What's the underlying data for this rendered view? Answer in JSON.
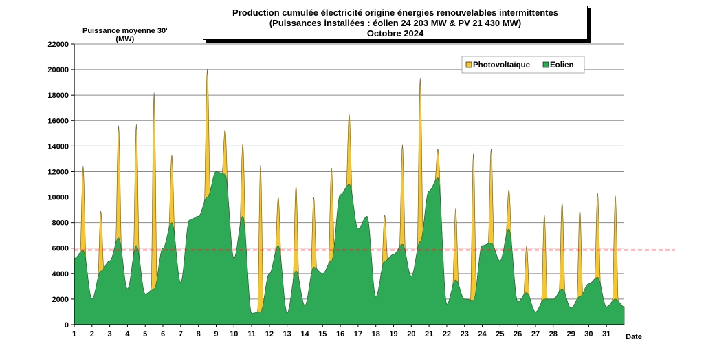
{
  "chart_data": {
    "type": "area",
    "title_lines": [
      "Production cumulée électricité origine énergies renouvelables intermittentes",
      "(Puissances installées : éolien 24 203 MW & PV 21 430 MW)",
      "Octobre 2024"
    ],
    "ylabel_lines": [
      "Puissance moyenne 30'",
      "(MW)"
    ],
    "xlabel": "Date",
    "ylim": [
      0,
      22000
    ],
    "xlim": [
      1,
      32
    ],
    "yticks": [
      0,
      2000,
      4000,
      6000,
      8000,
      10000,
      12000,
      14000,
      16000,
      18000,
      20000,
      22000
    ],
    "xticks": [
      1,
      2,
      3,
      4,
      5,
      6,
      7,
      8,
      9,
      10,
      11,
      12,
      13,
      14,
      15,
      16,
      17,
      18,
      19,
      20,
      21,
      22,
      23,
      24,
      25,
      26,
      27,
      28,
      29,
      30,
      31
    ],
    "grid": true,
    "legend_position": "top-right",
    "reference_line": 5850,
    "colors": {
      "photovoltaique": "#f5c630",
      "eolien": "#2eaa57",
      "reference": "#e8141e"
    },
    "series": [
      {
        "name": "Eolien",
        "days": [
          1,
          2,
          3,
          4,
          5,
          6,
          7,
          8,
          9,
          10,
          11,
          12,
          13,
          14,
          15,
          16,
          17,
          18,
          19,
          20,
          21,
          22,
          23,
          24,
          25,
          26,
          27,
          28,
          29,
          30,
          31
        ],
        "night_values": [
          5200,
          2000,
          5000,
          2800,
          2400,
          6000,
          3300,
          8500,
          12000,
          5200,
          900,
          4000,
          900,
          1500,
          4000,
          10200,
          7500,
          2200,
          5500,
          3800,
          10500,
          1600,
          2000,
          6200,
          5000,
          1800,
          1000,
          2000,
          1300,
          3200,
          1400
        ],
        "noon_values": [
          5800,
          4200,
          6800,
          6200,
          2800,
          8000,
          8200,
          10000,
          11800,
          8500,
          1000,
          6200,
          4200,
          4500,
          5000,
          11000,
          8500,
          5000,
          6300,
          6500,
          11500,
          3500,
          1900,
          6400,
          7500,
          2500,
          2000,
          2800,
          2200,
          3700,
          2000
        ]
      },
      {
        "name": "Photovoltaïque",
        "days": [
          1,
          2,
          3,
          4,
          5,
          6,
          7,
          8,
          9,
          10,
          11,
          12,
          13,
          14,
          15,
          16,
          17,
          18,
          19,
          20,
          21,
          22,
          23,
          24,
          25,
          26,
          27,
          28,
          29,
          30,
          31
        ],
        "peak_totals": [
          12400,
          8900,
          15600,
          15700,
          18200,
          13300,
          8000,
          20000,
          15300,
          14200,
          12500,
          10000,
          10900,
          10000,
          12300,
          16500,
          6000,
          8600,
          14100,
          19300,
          13800,
          9100,
          13400,
          13800,
          10600,
          6200,
          8600,
          9600,
          9000,
          10300,
          10100
        ]
      }
    ]
  }
}
